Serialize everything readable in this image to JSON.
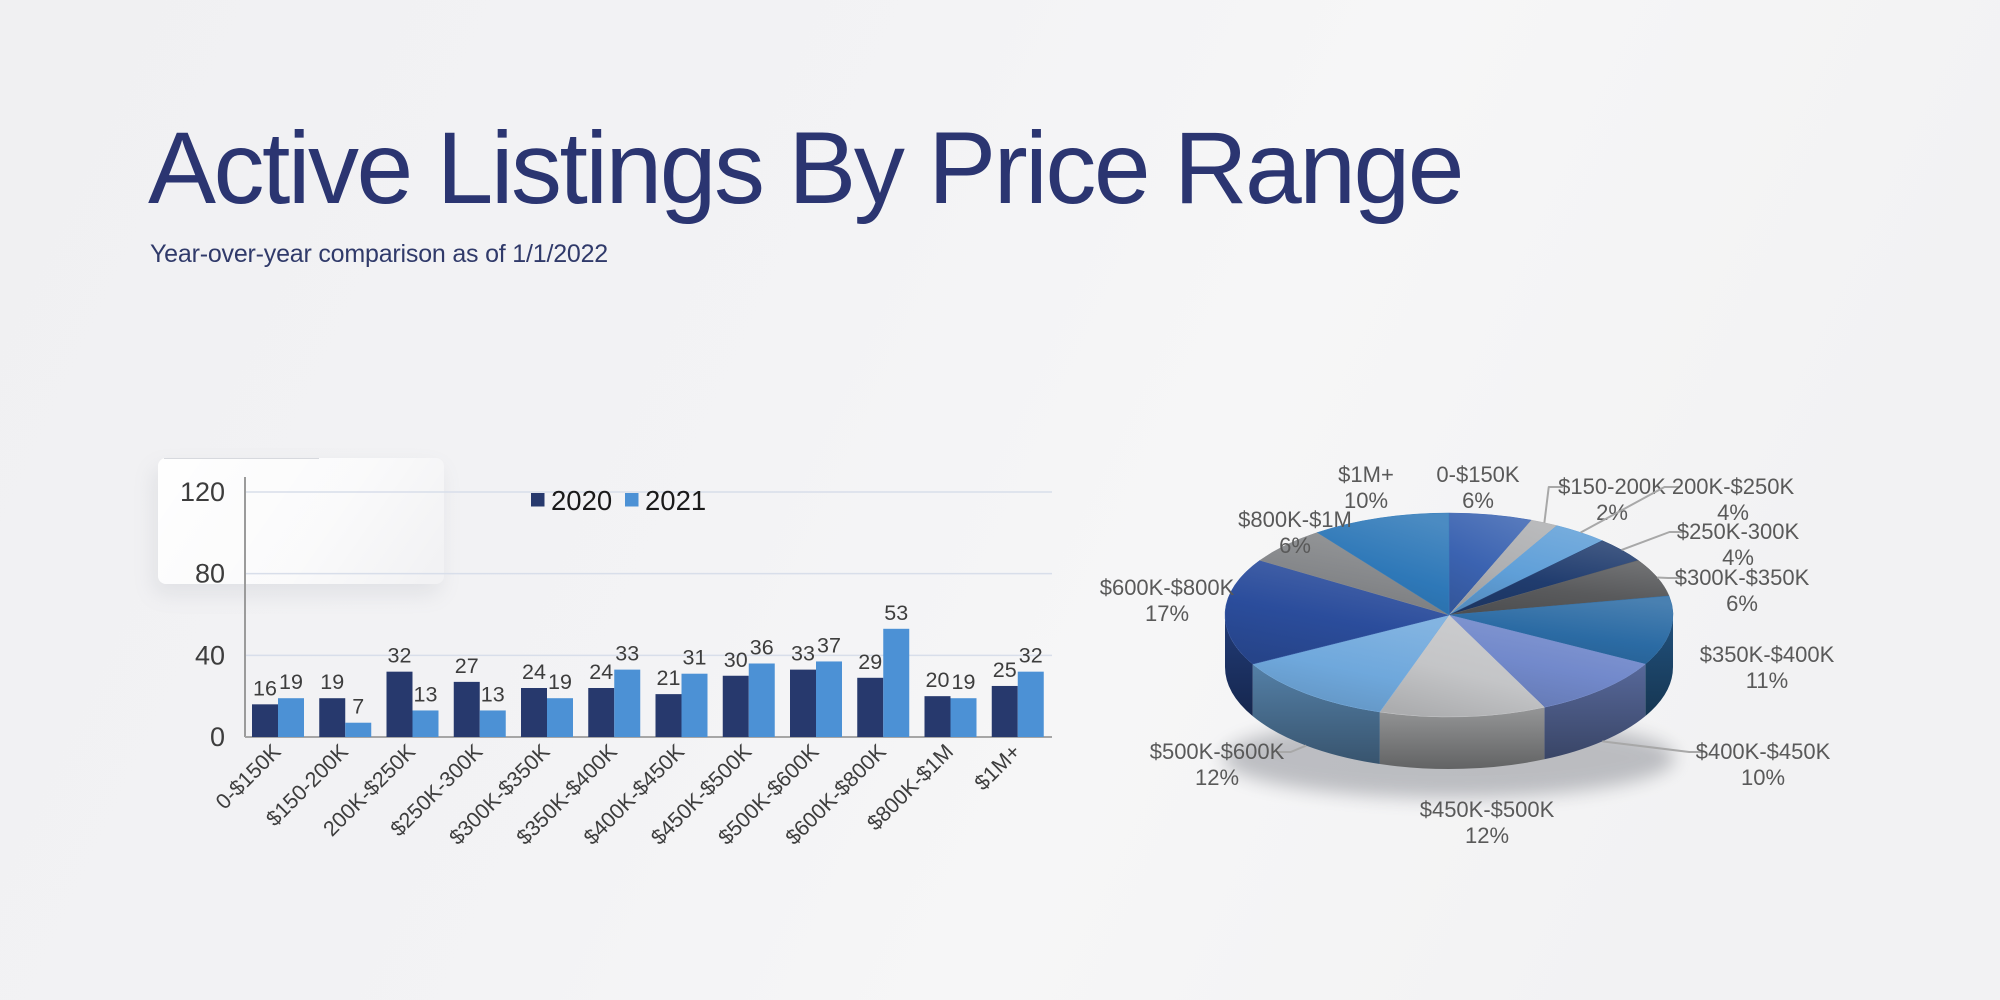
{
  "header": {
    "title": "Active Listings By Price Range",
    "subtitle": "Year-over-year comparison as of 1/1/2022"
  },
  "colors": {
    "title_text": "#2B3571",
    "background": "#F2F2F4",
    "axis_text": "#3D3D3D",
    "grid_line": "#D8DEEA",
    "axis_line": "#A6A6A6",
    "value_label_text": "#3D3D3D",
    "legend_text": "#1A1A1A",
    "pie_label_text": "#595959",
    "leader_line": "#A8A8A8"
  },
  "chart_data": [
    {
      "type": "bar",
      "title": "",
      "xlabel": "",
      "ylabel": "",
      "legend_position": "top-center",
      "grid": true,
      "value_labels": true,
      "ylim": [
        0,
        120
      ],
      "yticks": [
        0,
        40,
        80,
        120
      ],
      "categories": [
        "0-$150K",
        "$150-200K",
        "200K-$250K",
        "$250K-300K",
        "$300K-$350K",
        "$350K-$400K",
        "$400K-$450K",
        "$450K-$500K",
        "$500K-$600K",
        "$600K-$800K",
        "$800K-$1M",
        "$1M+"
      ],
      "series": [
        {
          "name": "2020",
          "color": "#27396D",
          "values": [
            16,
            19,
            32,
            27,
            24,
            24,
            21,
            30,
            33,
            29,
            20,
            25
          ]
        },
        {
          "name": "2021",
          "color": "#4C91D5",
          "values": [
            19,
            7,
            13,
            13,
            19,
            33,
            31,
            36,
            37,
            53,
            19,
            32
          ]
        }
      ]
    },
    {
      "type": "pie",
      "effect": "3d",
      "start_angle_deg": -90,
      "direction": "clockwise",
      "label_format": "{label} {pct}%",
      "slices": [
        {
          "label": "0-$150K",
          "pct": 6,
          "color": "#3B63B1"
        },
        {
          "label": "$150-200K",
          "pct": 2,
          "color": "#AEAFB1"
        },
        {
          "label": "200K-$250K",
          "pct": 4,
          "color": "#5F9FD8"
        },
        {
          "label": "$250K-300K",
          "pct": 4,
          "color": "#203C6E"
        },
        {
          "label": "$300K-$350K",
          "pct": 6,
          "color": "#595A5C"
        },
        {
          "label": "$350K-$400K",
          "pct": 11,
          "color": "#2B6BA4"
        },
        {
          "label": "$400K-$450K",
          "pct": 10,
          "color": "#7289CB"
        },
        {
          "label": "$450K-$500K",
          "pct": 12,
          "color": "#C4C5C7"
        },
        {
          "label": "$500K-$600K",
          "pct": 12,
          "color": "#6FA8DC"
        },
        {
          "label": "$600K-$800K",
          "pct": 17,
          "color": "#2B4D9C"
        },
        {
          "label": "$800K-$1M",
          "pct": 6,
          "color": "#85878A"
        },
        {
          "label": "$1M+",
          "pct": 10,
          "color": "#2E78B8"
        }
      ]
    }
  ]
}
